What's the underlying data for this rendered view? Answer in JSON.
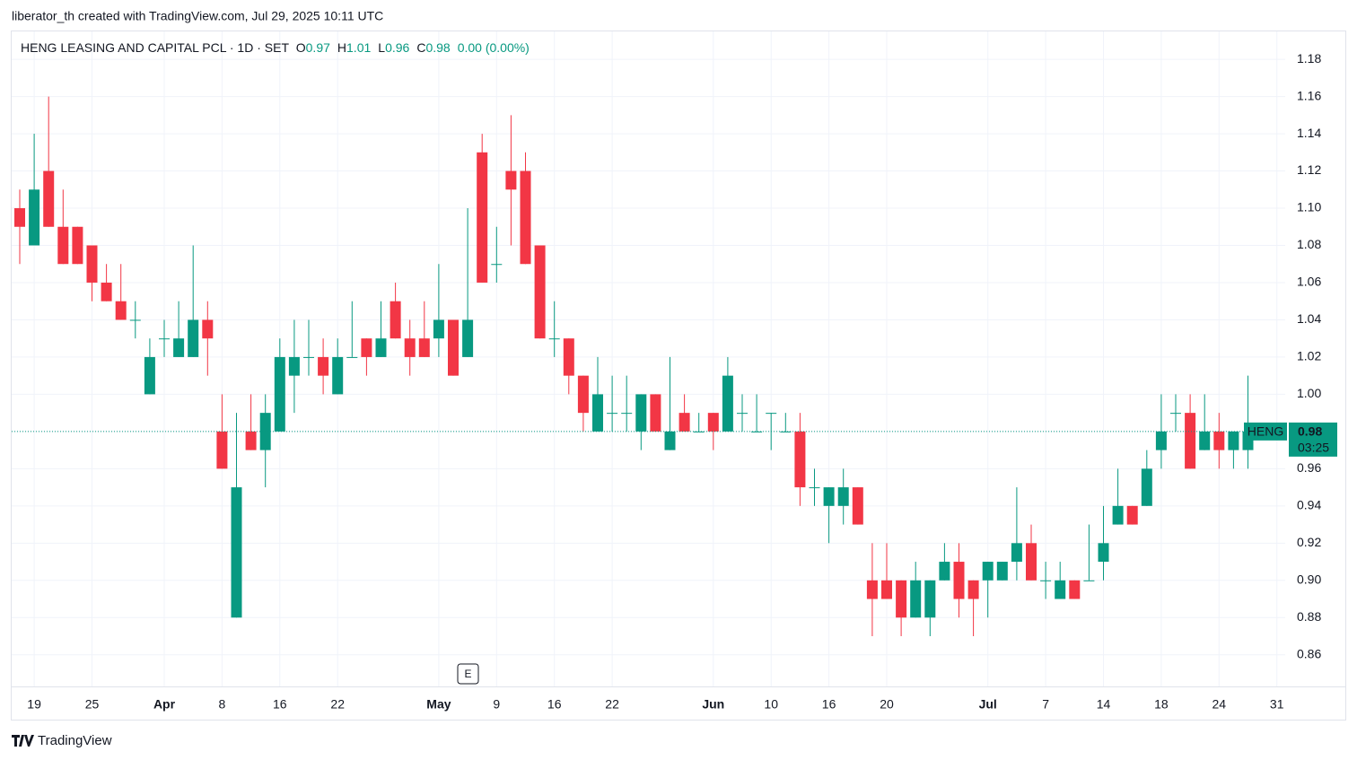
{
  "header": "liberator_th created with TradingView.com, Jul 29, 2025 10:11 UTC",
  "footer": "TradingView",
  "chart_data": {
    "type": "candlestick",
    "title": "HENG LEASING AND CAPITAL PCL · 1D · SET",
    "legend_keys": [
      "O",
      "H",
      "L",
      "C"
    ],
    "change": "0.00 (0.00%)",
    "symbol": "HENG",
    "countdown": "03:25",
    "event": "E",
    "up_color": "#089981",
    "down_color": "#f23645",
    "grid": true,
    "ylim": [
      0.843,
      1.195
    ],
    "yticks": [
      0.86,
      0.88,
      {
        "value": 0.9,
        "label": "0.90"
      },
      0.92,
      0.94,
      0.96,
      0.98,
      {
        "value": 1,
        "label": "1.00"
      },
      1.02,
      1.04,
      1.06,
      1.08,
      {
        "value": 1.1,
        "label": "1.10"
      },
      1.12,
      1.14,
      1.16,
      1.18
    ],
    "categories": [
      null,
      "19",
      null,
      null,
      null,
      "25",
      null,
      null,
      null,
      null,
      "Apr",
      null,
      null,
      null,
      "8",
      null,
      null,
      null,
      "16",
      null,
      null,
      null,
      "22",
      null,
      null,
      null,
      null,
      null,
      null,
      "May",
      null,
      null,
      null,
      "9",
      null,
      null,
      null,
      "16",
      null,
      null,
      null,
      "22",
      null,
      null,
      null,
      null,
      null,
      null,
      "Jun",
      null,
      null,
      null,
      "10",
      null,
      null,
      null,
      "16",
      null,
      null,
      null,
      "20",
      null,
      null,
      null,
      null,
      null,
      null,
      "Jul",
      null,
      null,
      null,
      "7",
      null,
      null,
      null,
      "14",
      null,
      null,
      null,
      "18",
      null,
      null,
      null,
      "24",
      null,
      null,
      null,
      "31"
    ],
    "open": [
      1.1,
      1.08,
      1.12,
      1.09,
      1.09,
      1.08,
      1.06,
      1.05,
      1.04,
      1.0,
      1.03,
      1.02,
      1.02,
      1.04,
      0.98,
      0.88,
      0.98,
      0.97,
      0.98,
      1.01,
      1.02,
      1.02,
      1.0,
      1.02,
      1.03,
      1.02,
      1.05,
      1.03,
      1.03,
      1.03,
      1.04,
      1.02,
      1.13,
      1.07,
      1.12,
      1.12,
      1.08,
      1.03,
      1.03,
      1.01,
      0.98,
      0.99,
      0.99,
      0.98,
      1.0,
      0.97,
      0.99,
      0.98,
      0.99,
      0.98,
      0.99,
      0.98,
      0.99,
      0.98,
      0.98,
      0.95,
      0.94,
      0.94,
      0.95,
      0.9,
      0.9,
      0.9,
      0.88,
      0.88,
      0.9,
      0.91,
      0.9,
      0.9,
      0.9,
      0.91,
      0.92,
      0.9,
      0.89,
      0.9,
      0.9,
      0.91,
      0.93,
      0.94,
      0.94,
      0.97,
      0.99,
      0.99,
      0.97,
      0.98,
      0.97,
      0.97,
      null,
      null
    ],
    "high": [
      1.11,
      1.14,
      1.16,
      1.11,
      1.09,
      1.08,
      1.07,
      1.07,
      1.05,
      1.03,
      1.04,
      1.05,
      1.08,
      1.05,
      1.0,
      0.99,
      1.0,
      1.0,
      1.03,
      1.04,
      1.04,
      1.03,
      1.03,
      1.05,
      1.03,
      1.05,
      1.06,
      1.04,
      1.05,
      1.07,
      1.04,
      1.1,
      1.14,
      1.09,
      1.15,
      1.13,
      1.08,
      1.05,
      1.03,
      1.01,
      1.02,
      1.01,
      1.01,
      1.0,
      1.0,
      1.02,
      1.0,
      0.99,
      0.99,
      1.02,
      1.0,
      1.0,
      0.99,
      0.99,
      0.99,
      0.96,
      0.95,
      0.96,
      0.95,
      0.92,
      0.92,
      0.9,
      0.91,
      0.9,
      0.92,
      0.92,
      0.9,
      0.91,
      0.91,
      0.95,
      0.93,
      0.91,
      0.91,
      0.9,
      0.93,
      0.94,
      0.96,
      0.94,
      0.97,
      1.0,
      1.0,
      1.0,
      1.0,
      0.99,
      0.98,
      1.01,
      null,
      null
    ],
    "low": [
      1.07,
      1.08,
      1.09,
      1.07,
      1.07,
      1.05,
      1.05,
      1.04,
      1.03,
      1.0,
      1.02,
      1.02,
      1.02,
      1.01,
      0.96,
      0.88,
      0.97,
      0.95,
      0.98,
      0.99,
      1.01,
      1.0,
      1.0,
      1.02,
      1.01,
      1.02,
      1.03,
      1.01,
      1.02,
      1.02,
      1.01,
      1.02,
      1.06,
      1.06,
      1.08,
      1.07,
      1.03,
      1.02,
      1.0,
      0.98,
      0.98,
      0.98,
      0.98,
      0.97,
      0.98,
      0.97,
      0.98,
      0.98,
      0.97,
      0.98,
      0.98,
      0.98,
      0.97,
      0.98,
      0.94,
      0.94,
      0.92,
      0.93,
      0.93,
      0.87,
      0.89,
      0.87,
      0.88,
      0.87,
      0.9,
      0.88,
      0.87,
      0.88,
      0.9,
      0.9,
      0.9,
      0.89,
      0.89,
      0.89,
      0.9,
      0.9,
      0.93,
      0.93,
      0.94,
      0.96,
      0.98,
      0.96,
      0.97,
      0.96,
      0.96,
      0.96,
      null,
      null
    ],
    "close": [
      1.09,
      1.11,
      1.09,
      1.07,
      1.07,
      1.06,
      1.05,
      1.04,
      1.04,
      1.02,
      1.03,
      1.03,
      1.04,
      1.03,
      0.96,
      0.95,
      0.97,
      0.99,
      1.02,
      1.02,
      1.02,
      1.01,
      1.02,
      1.02,
      1.02,
      1.03,
      1.03,
      1.02,
      1.02,
      1.04,
      1.01,
      1.04,
      1.06,
      1.07,
      1.11,
      1.07,
      1.03,
      1.03,
      1.01,
      0.99,
      1.0,
      0.99,
      0.99,
      1.0,
      0.98,
      0.98,
      0.98,
      0.98,
      0.98,
      1.01,
      0.99,
      0.98,
      0.99,
      0.98,
      0.95,
      0.95,
      0.95,
      0.95,
      0.93,
      0.89,
      0.89,
      0.88,
      0.9,
      0.9,
      0.91,
      0.89,
      0.89,
      0.91,
      0.91,
      0.92,
      0.9,
      0.9,
      0.9,
      0.89,
      0.9,
      0.92,
      0.94,
      0.93,
      0.96,
      0.98,
      0.99,
      0.96,
      0.98,
      0.97,
      0.98,
      0.98,
      null,
      null
    ]
  }
}
